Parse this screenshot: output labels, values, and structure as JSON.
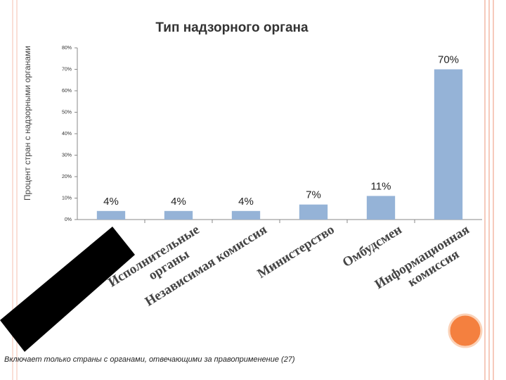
{
  "chart_data": {
    "type": "bar",
    "title": "Тип надзорного органа",
    "y_label": "Процент стран с надзорными органами",
    "categories": [
      null,
      "Исполнительные\nорганы",
      "Независимая комиссия",
      "Министерство",
      "Омбудсмен",
      "Информационная\nкомиссия"
    ],
    "values": [
      4,
      4,
      4,
      7,
      11,
      70
    ],
    "value_labels": [
      "4%",
      "4%",
      "4%",
      "7%",
      "11%",
      "70%"
    ],
    "color": "#95b3d7",
    "ylim": [
      0,
      80
    ],
    "yticks": [
      {
        "value": 0,
        "label": "0%"
      },
      {
        "value": 10,
        "label": "10%"
      },
      {
        "value": 20,
        "label": "20%"
      },
      {
        "value": 30,
        "label": "30%"
      },
      {
        "value": 40,
        "label": "40%"
      },
      {
        "value": 50,
        "label": "50%"
      },
      {
        "value": 60,
        "label": "60%"
      },
      {
        "value": 70,
        "label": "70%"
      },
      {
        "value": 80,
        "label": "80%"
      }
    ],
    "grid": false,
    "footnote": "Включает только страны с органами, отвечающими за правоприменение (27)"
  }
}
